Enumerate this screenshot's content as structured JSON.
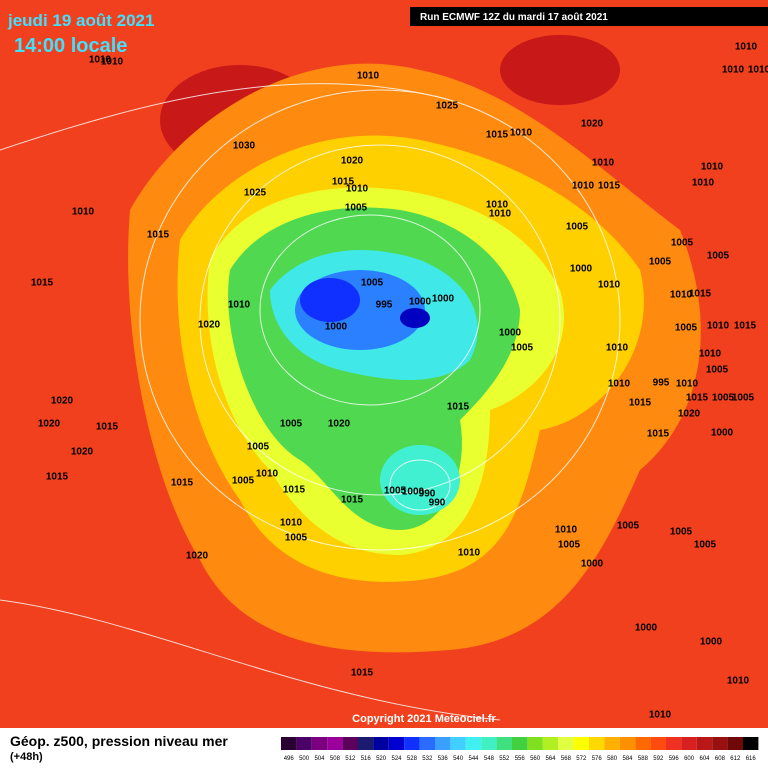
{
  "header": {
    "date": "jeudi 19 août 2021",
    "time": "14:00 locale",
    "run": "Run ECMWF 12Z du mardi 17 août 2021"
  },
  "copyright": "Copyright 2021 Meteociel.fr",
  "footer": {
    "title": "Géop. z500, pression niveau mer",
    "step": "(+48h)"
  },
  "colorbar": {
    "values": [
      496,
      500,
      504,
      508,
      512,
      516,
      520,
      524,
      528,
      532,
      536,
      540,
      544,
      548,
      552,
      556,
      560,
      564,
      568,
      572,
      576,
      580,
      584,
      588,
      592,
      596,
      600,
      604,
      608,
      612,
      616
    ],
    "colors": [
      "#2a0033",
      "#4a0066",
      "#7a0080",
      "#9b009b",
      "#5c005c",
      "#1a1a6e",
      "#0000a0",
      "#0000d0",
      "#1030ff",
      "#2a6cff",
      "#3aa0ff",
      "#40d0ff",
      "#40f0f0",
      "#40f0c0",
      "#40e080",
      "#40d040",
      "#80e020",
      "#b0f020",
      "#e0ff40",
      "#ffff00",
      "#ffd800",
      "#ffb000",
      "#ff9000",
      "#ff6a00",
      "#ff4a10",
      "#f03020",
      "#d82020",
      "#b81818",
      "#981010",
      "#700808",
      "#000000"
    ]
  },
  "isobar_labels": [
    1010,
    1010,
    1010,
    1025,
    1030,
    1020,
    1015,
    1010,
    1025,
    1005,
    1010,
    1015,
    1015,
    1010,
    1020,
    1005,
    995,
    1000,
    1000,
    1000,
    1015,
    1010,
    1020,
    1010,
    1015,
    1010,
    1010,
    1010,
    1005,
    1000,
    1005,
    1005,
    1005,
    1010,
    1010,
    1015,
    1005,
    1010,
    1015,
    1000,
    1005,
    1010,
    1010,
    1005,
    1005,
    1010,
    995,
    1010,
    1015,
    1005,
    1020,
    1015,
    1015,
    1000,
    1015,
    1020,
    1020,
    1015,
    1005,
    1020,
    1005,
    1020,
    1015,
    1010,
    1005,
    1015,
    1015,
    1015,
    1005,
    1000,
    990,
    990,
    1010,
    1005,
    1005,
    1010,
    1005,
    1005,
    1005,
    1010,
    1000,
    1020,
    1000,
    1000,
    1015,
    1010,
    1010,
    1010,
    1010,
    1010,
    1010,
    1010
  ]
}
